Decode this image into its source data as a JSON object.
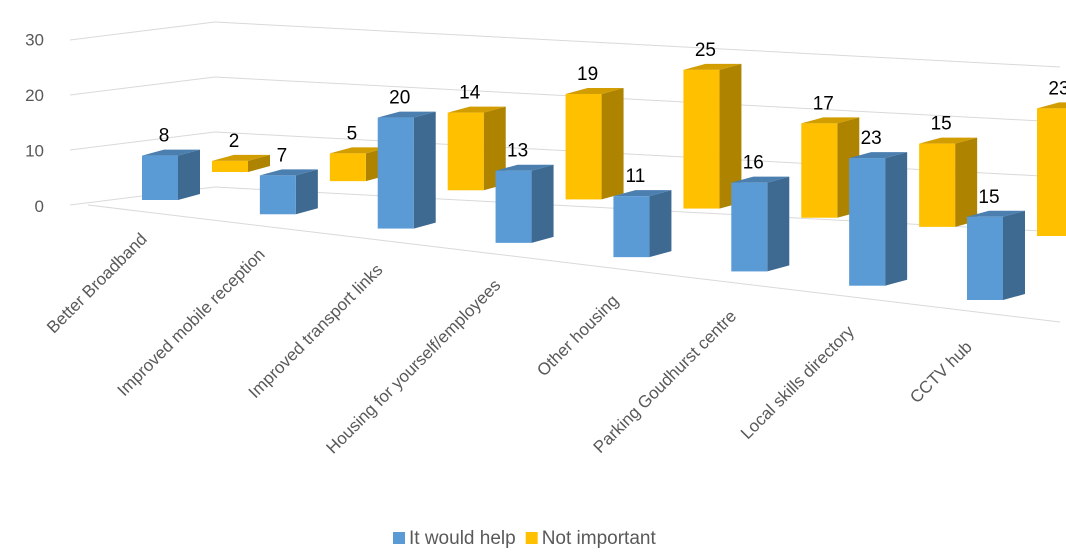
{
  "chart_data": {
    "type": "bar",
    "style": "3d-clustered-column",
    "categories": [
      "Better Broadband",
      "Improved mobile reception",
      "Improved transport links",
      "Housing for yourself/employees",
      "Other housing",
      "Parking Goudhurst centre",
      "Local skills directory",
      "CCTV hub"
    ],
    "series": [
      {
        "name": "It would help",
        "values": [
          8,
          7,
          20,
          13,
          11,
          16,
          23,
          15
        ],
        "color": "#5B9BD5"
      },
      {
        "name": "Not important",
        "values": [
          2,
          5,
          14,
          19,
          25,
          17,
          15,
          23
        ],
        "color": "#FFC000"
      }
    ],
    "ylim": [
      0,
      30
    ],
    "yticks": [
      "0",
      "10",
      "20",
      "30"
    ],
    "grid": true,
    "legend": "bottom"
  }
}
